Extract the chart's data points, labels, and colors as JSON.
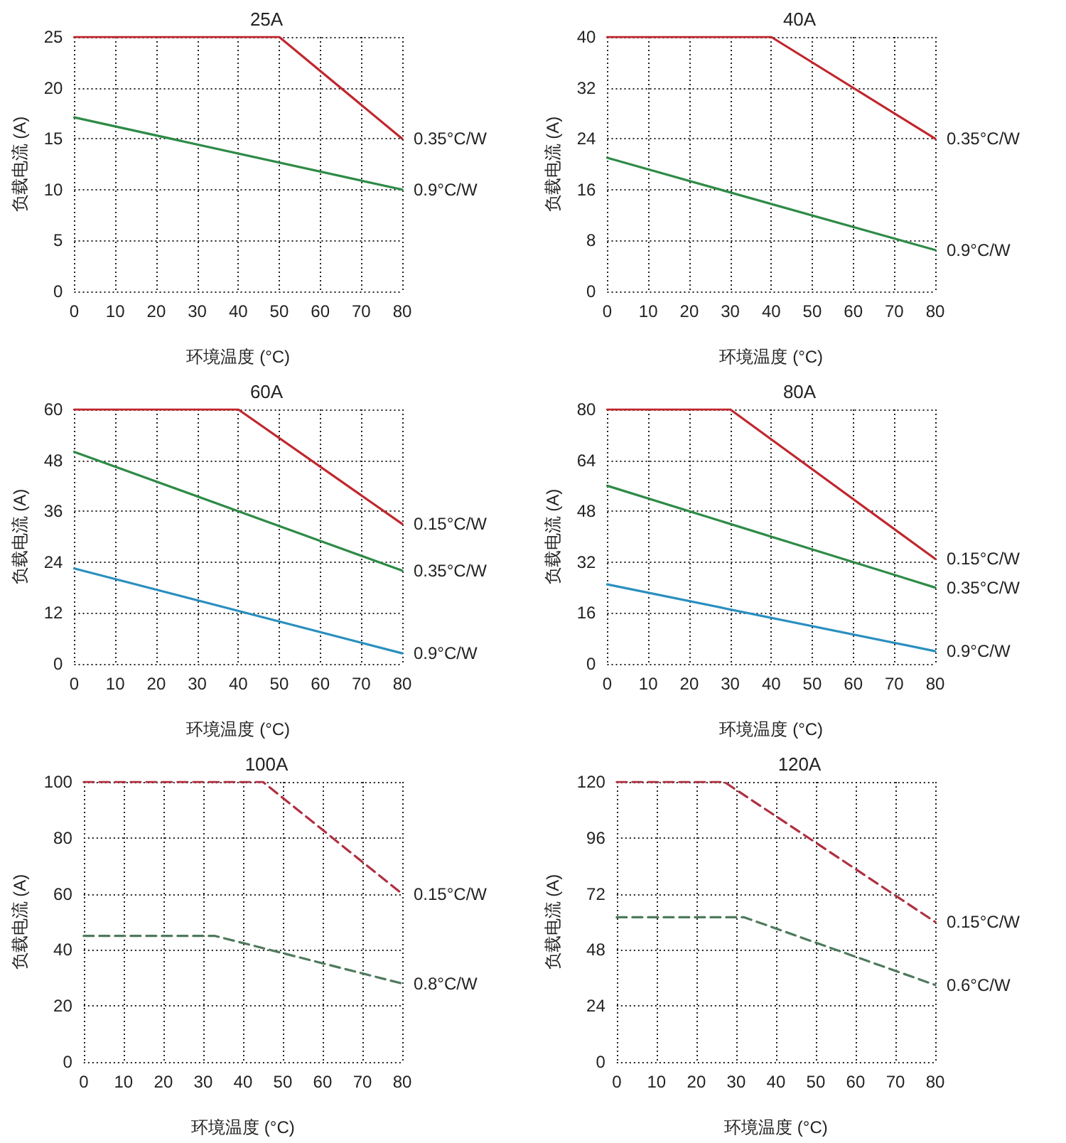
{
  "chart_data": [
    {
      "type": "line",
      "title": "25A",
      "xlabel": "环境温度 (°C)",
      "ylabel": "负载电流 (A)",
      "xlim": [
        0,
        80
      ],
      "xticks": [
        0,
        10,
        20,
        30,
        40,
        50,
        60,
        70,
        80
      ],
      "ylim": [
        0,
        25
      ],
      "yticks": [
        0,
        5,
        10,
        15,
        20,
        25
      ],
      "grid": true,
      "legend": false,
      "marker": "none",
      "line_style": "solid",
      "series": [
        {
          "name": "0.35°C/W",
          "color": "#c0272d",
          "x": [
            0,
            50,
            80
          ],
          "values": [
            25,
            25,
            15
          ]
        },
        {
          "name": "0.9°C/W",
          "color": "#2e8b47",
          "x": [
            0,
            80
          ],
          "values": [
            17.1,
            10
          ]
        }
      ]
    },
    {
      "type": "line",
      "title": "40A",
      "xlabel": "环境温度 (°C)",
      "ylabel": "负载电流 (A)",
      "xlim": [
        0,
        80
      ],
      "xticks": [
        0,
        10,
        20,
        30,
        40,
        50,
        60,
        70,
        80
      ],
      "ylim": [
        0,
        40
      ],
      "yticks": [
        0,
        8,
        16,
        24,
        32,
        40
      ],
      "grid": true,
      "legend": false,
      "marker": "none",
      "line_style": "solid",
      "series": [
        {
          "name": "0.35°C/W",
          "color": "#c0272d",
          "x": [
            0,
            40,
            80
          ],
          "values": [
            40,
            40,
            24
          ]
        },
        {
          "name": "0.9°C/W",
          "color": "#2e8b47",
          "x": [
            0,
            80
          ],
          "values": [
            21,
            6.5
          ]
        }
      ]
    },
    {
      "type": "line",
      "title": "60A",
      "xlabel": "环境温度 (°C)",
      "ylabel": "负载电流 (A)",
      "xlim": [
        0,
        80
      ],
      "xticks": [
        0,
        10,
        20,
        30,
        40,
        50,
        60,
        70,
        80
      ],
      "ylim": [
        0,
        60
      ],
      "yticks": [
        0,
        12,
        24,
        36,
        48,
        60
      ],
      "grid": true,
      "legend": false,
      "marker": "none",
      "line_style": "solid",
      "series": [
        {
          "name": "0.15°C/W",
          "color": "#c0272d",
          "x": [
            0,
            40,
            80
          ],
          "values": [
            60,
            60,
            33
          ]
        },
        {
          "name": "0.35°C/W",
          "color": "#2e8b47",
          "x": [
            0,
            80
          ],
          "values": [
            50,
            22
          ]
        },
        {
          "name": "0.9°C/W",
          "color": "#2a8fbf",
          "x": [
            0,
            80
          ],
          "values": [
            22.5,
            2.5
          ]
        }
      ]
    },
    {
      "type": "line",
      "title": "80A",
      "xlabel": "环境温度 (°C)",
      "ylabel": "负载电流 (A)",
      "xlim": [
        0,
        80
      ],
      "xticks": [
        0,
        10,
        20,
        30,
        40,
        50,
        60,
        70,
        80
      ],
      "ylim": [
        0,
        80
      ],
      "yticks": [
        0,
        16,
        32,
        48,
        64,
        80
      ],
      "grid": true,
      "legend": false,
      "marker": "none",
      "line_style": "solid",
      "series": [
        {
          "name": "0.15°C/W",
          "color": "#c0272d",
          "x": [
            0,
            30,
            80
          ],
          "values": [
            80,
            80,
            33
          ]
        },
        {
          "name": "0.35°C/W",
          "color": "#2e8b47",
          "x": [
            0,
            80
          ],
          "values": [
            56,
            24
          ]
        },
        {
          "name": "0.9°C/W",
          "color": "#2a8fbf",
          "x": [
            0,
            80
          ],
          "values": [
            25,
            4
          ]
        }
      ]
    },
    {
      "type": "line",
      "title": "100A",
      "xlabel": "环境温度 (°C)",
      "ylabel": "负载电流 (A)",
      "xlim": [
        0,
        80
      ],
      "xticks": [
        0,
        10,
        20,
        30,
        40,
        50,
        60,
        70,
        80
      ],
      "ylim": [
        0,
        100
      ],
      "yticks": [
        0,
        20,
        40,
        60,
        80,
        100
      ],
      "grid": true,
      "legend": false,
      "marker": "none",
      "line_style": "dashed",
      "series": [
        {
          "name": "0.15°C/W",
          "color": "#b03040",
          "x": [
            0,
            45,
            80
          ],
          "values": [
            100,
            100,
            60
          ]
        },
        {
          "name": "0.8°C/W",
          "color": "#4f7a5e",
          "x": [
            0,
            33,
            80
          ],
          "values": [
            45,
            45,
            28
          ]
        }
      ]
    },
    {
      "type": "line",
      "title": "120A",
      "xlabel": "环境温度 (°C)",
      "ylabel": "负载电流 (A)",
      "xlim": [
        0,
        80
      ],
      "xticks": [
        0,
        10,
        20,
        30,
        40,
        50,
        60,
        70,
        80
      ],
      "ylim": [
        0,
        120
      ],
      "yticks": [
        0,
        24,
        48,
        72,
        96,
        120
      ],
      "grid": true,
      "legend": false,
      "marker": "none",
      "line_style": "dashed",
      "series": [
        {
          "name": "0.15°C/W",
          "color": "#b03040",
          "x": [
            0,
            27,
            80
          ],
          "values": [
            120,
            120,
            60
          ]
        },
        {
          "name": "0.6°C/W",
          "color": "#4f7a5e",
          "x": [
            0,
            32,
            80
          ],
          "values": [
            62,
            62,
            33
          ]
        }
      ]
    }
  ]
}
